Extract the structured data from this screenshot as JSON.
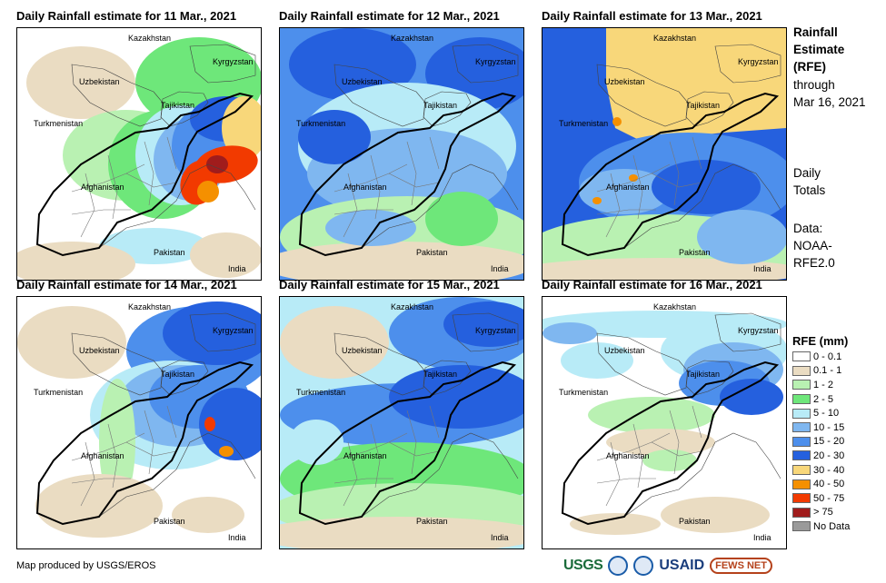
{
  "panels": [
    {
      "title": "Daily Rainfall estimate for 11 Mar., 2021"
    },
    {
      "title": "Daily Rainfall estimate for 12 Mar., 2021"
    },
    {
      "title": "Daily Rainfall estimate for 13 Mar., 2021"
    },
    {
      "title": "Daily Rainfall estimate for 14 Mar., 2021"
    },
    {
      "title": "Daily Rainfall estimate for 15 Mar., 2021"
    },
    {
      "title": "Daily Rainfall estimate for 16 Mar., 2021"
    }
  ],
  "countries": {
    "kazakhstan": "Kazakhstan",
    "kyrgyzstan": "Kyrgyzstan",
    "uzbekistan": "Uzbekistan",
    "tajikistan": "Tajikistan",
    "turkmenistan": "Turkmenistan",
    "afghanistan": "Afghanistan",
    "pakistan": "Pakistan",
    "india": "India"
  },
  "side": {
    "title_line1": "Rainfall",
    "title_line2": "Estimate",
    "title_line3": "(RFE)",
    "through": "through",
    "date": "Mar 16, 2021",
    "daily1": "Daily",
    "daily2": "Totals",
    "data1": "Data:",
    "data2": "NOAA-",
    "data3": "RFE2.0"
  },
  "legend": {
    "title": "RFE (mm)",
    "items": [
      {
        "label": "0 - 0.1",
        "color": "#ffffff"
      },
      {
        "label": "0.1 - 1",
        "color": "#eadcc2"
      },
      {
        "label": "1 - 2",
        "color": "#b9f1b2"
      },
      {
        "label": "2 - 5",
        "color": "#6ee77a"
      },
      {
        "label": "5 - 10",
        "color": "#b8ebf7"
      },
      {
        "label": "10 - 15",
        "color": "#7fb7f0"
      },
      {
        "label": "15 - 20",
        "color": "#4d8fec"
      },
      {
        "label": "20 - 30",
        "color": "#2560de"
      },
      {
        "label": "30 - 40",
        "color": "#f8d77a"
      },
      {
        "label": "40 - 50",
        "color": "#f59000"
      },
      {
        "label": "50 - 75",
        "color": "#f23a00"
      },
      {
        "label": "> 75",
        "color": "#a01c1c"
      },
      {
        "label": "No Data",
        "color": "#9a9a9a"
      }
    ]
  },
  "footer": "Map produced by USGS/EROS",
  "logos": {
    "usgs": "USGS",
    "usaid": "USAID",
    "fews": "FEWS NET"
  }
}
